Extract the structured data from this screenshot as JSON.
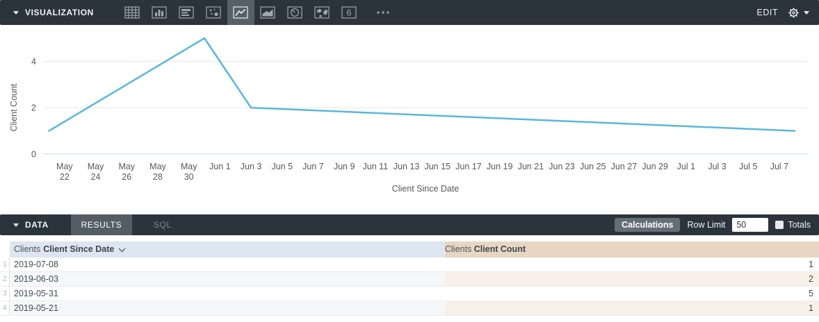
{
  "viz_bar": {
    "title": "VISUALIZATION",
    "edit_label": "EDIT",
    "icons": [
      {
        "name": "table"
      },
      {
        "name": "column-chart"
      },
      {
        "name": "bar-chart"
      },
      {
        "name": "scatter"
      },
      {
        "name": "line-chart",
        "selected": true
      },
      {
        "name": "area-chart"
      },
      {
        "name": "pie-chart"
      },
      {
        "name": "map"
      },
      {
        "name": "single-value",
        "glyph": "6"
      },
      {
        "name": "more-options"
      }
    ]
  },
  "chart_data": {
    "type": "line",
    "series_name": "Clients Client Count",
    "x": [
      "2019-05-21",
      "2019-05-31",
      "2019-06-03",
      "2019-07-08"
    ],
    "y": [
      1,
      5,
      2,
      1
    ],
    "xlabel": "Client Since Date",
    "ylabel": "Client Count",
    "ylim": [
      0,
      5
    ],
    "yticks": [
      0,
      2,
      4
    ],
    "grid": "horizontal",
    "legend": "none",
    "line_color": "#58b7d9",
    "xticks": [
      {
        "date": "2019-05-22",
        "label": "May|22"
      },
      {
        "date": "2019-05-24",
        "label": "May|24"
      },
      {
        "date": "2019-05-26",
        "label": "May|26"
      },
      {
        "date": "2019-05-28",
        "label": "May|28"
      },
      {
        "date": "2019-05-30",
        "label": "May|30"
      },
      {
        "date": "2019-06-01",
        "label": "Jun 1"
      },
      {
        "date": "2019-06-03",
        "label": "Jun 3"
      },
      {
        "date": "2019-06-05",
        "label": "Jun 5"
      },
      {
        "date": "2019-06-07",
        "label": "Jun 7"
      },
      {
        "date": "2019-06-09",
        "label": "Jun 9"
      },
      {
        "date": "2019-06-11",
        "label": "Jun 11"
      },
      {
        "date": "2019-06-13",
        "label": "Jun 13"
      },
      {
        "date": "2019-06-15",
        "label": "Jun 15"
      },
      {
        "date": "2019-06-17",
        "label": "Jun 17"
      },
      {
        "date": "2019-06-19",
        "label": "Jun 19"
      },
      {
        "date": "2019-06-21",
        "label": "Jun 21"
      },
      {
        "date": "2019-06-23",
        "label": "Jun 23"
      },
      {
        "date": "2019-06-25",
        "label": "Jun 25"
      },
      {
        "date": "2019-06-27",
        "label": "Jun 27"
      },
      {
        "date": "2019-06-29",
        "label": "Jun 29"
      },
      {
        "date": "2019-07-01",
        "label": "Jul 1"
      },
      {
        "date": "2019-07-03",
        "label": "Jul 3"
      },
      {
        "date": "2019-07-05",
        "label": "Jul 5"
      },
      {
        "date": "2019-07-07",
        "label": "Jul 7"
      }
    ]
  },
  "data_bar": {
    "title": "DATA",
    "tabs": [
      {
        "label": "RESULTS",
        "active": true
      },
      {
        "label": "SQL",
        "active": false
      }
    ],
    "calculations_label": "Calculations",
    "row_limit_label": "Row Limit",
    "row_limit_value": "50",
    "totals_label": "Totals"
  },
  "table": {
    "columns": [
      {
        "prefix": "Clients",
        "name": "Client Since Date",
        "type": "dimension",
        "sorted": "desc"
      },
      {
        "prefix": "Clients",
        "name": "Client Count",
        "type": "measure"
      }
    ],
    "rows": [
      {
        "num": "1",
        "date": "2019-07-08",
        "count": "1"
      },
      {
        "num": "2",
        "date": "2019-06-03",
        "count": "2"
      },
      {
        "num": "3",
        "date": "2019-05-31",
        "count": "5"
      },
      {
        "num": "4",
        "date": "2019-05-21",
        "count": "1"
      }
    ]
  },
  "colors": {
    "bar_background": "#2b333d",
    "selected_tab": "#545d66",
    "line": "#58b7d9",
    "dimension_header": "#dce5f0",
    "measure_header": "#e6d6c2"
  }
}
